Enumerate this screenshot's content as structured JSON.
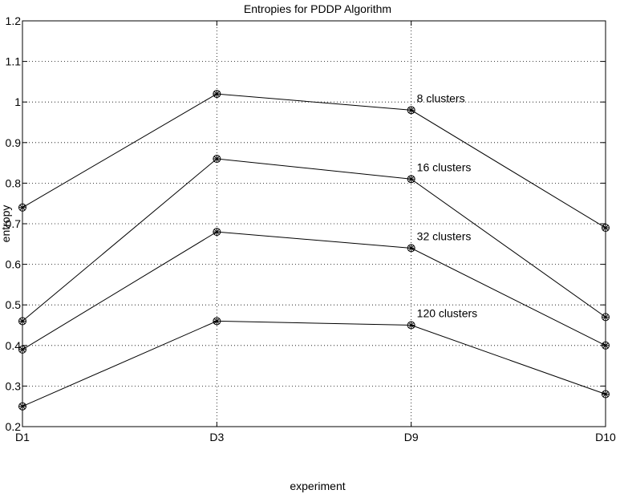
{
  "chart_data": {
    "type": "line",
    "title": "Entropies for PDDP Algorithm",
    "xlabel": "experiment",
    "ylabel": "entropy",
    "categories": [
      "D1",
      "D3",
      "D9",
      "D10"
    ],
    "ylim": [
      0.2,
      1.2
    ],
    "yticks": [
      "0.2",
      "0.3",
      "0.4",
      "0.5",
      "0.6",
      "0.7",
      "0.8",
      "0.9",
      "1",
      "1.1",
      "1.2"
    ],
    "grid": true,
    "series": [
      {
        "name": "8 clusters",
        "values": [
          0.74,
          1.02,
          0.98,
          0.69
        ]
      },
      {
        "name": "16 clusters",
        "values": [
          0.46,
          0.86,
          0.81,
          0.47
        ]
      },
      {
        "name": "32 clusters",
        "values": [
          0.39,
          0.68,
          0.64,
          0.4
        ]
      },
      {
        "name": "120 clusters",
        "values": [
          0.25,
          0.46,
          0.45,
          0.28
        ]
      }
    ],
    "colors": {
      "line": "#000000",
      "grid": "#000000",
      "background": "#ffffff"
    }
  }
}
